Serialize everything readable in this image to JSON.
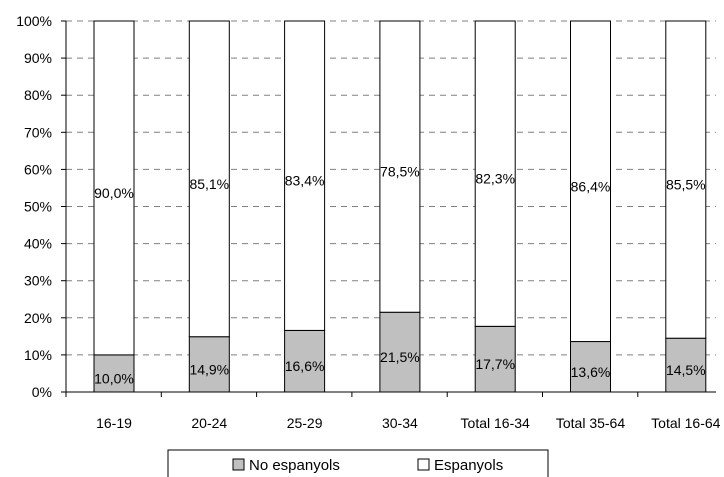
{
  "chart_data": {
    "type": "bar",
    "stacked": true,
    "categories": [
      "16-19",
      "20-24",
      "25-29",
      "30-34",
      "Total 16-34",
      "Total 35-64",
      "Total 16-64"
    ],
    "series": [
      {
        "name": "No espanyols",
        "values": [
          10.0,
          14.9,
          16.6,
          21.5,
          17.7,
          13.6,
          14.5
        ],
        "labels": [
          "10,0%",
          "14,9%",
          "16,6%",
          "21,5%",
          "17,7%",
          "13,6%",
          "14,5%"
        ],
        "color": "#c0c0c0"
      },
      {
        "name": "Espanyols",
        "values": [
          90.0,
          85.1,
          83.4,
          78.5,
          82.3,
          86.4,
          85.5
        ],
        "labels": [
          "90,0%",
          "85,1%",
          "83,4%",
          "78,5%",
          "82,3%",
          "86,4%",
          "85,5%"
        ],
        "color": "#ffffff"
      }
    ],
    "y_ticks": [
      "0%",
      "10%",
      "20%",
      "30%",
      "40%",
      "50%",
      "60%",
      "70%",
      "80%",
      "90%",
      "100%"
    ],
    "ylim": [
      0,
      100
    ],
    "grid": true,
    "grid_style": "dashed",
    "legend_position": "bottom"
  }
}
